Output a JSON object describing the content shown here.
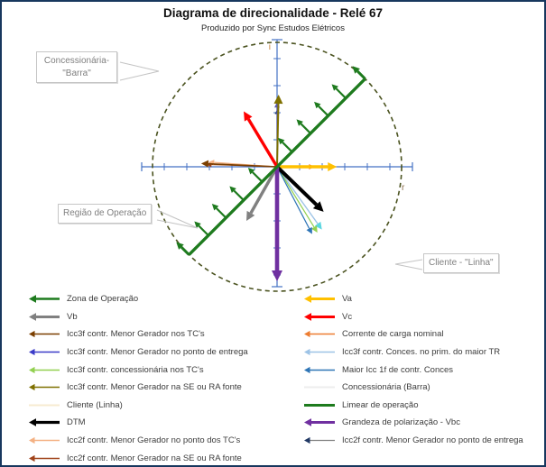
{
  "title": "Diagrama de direcionalidade - Relé 67",
  "subtitle": "Produzido por Sync Estudos Elétricos",
  "callouts": {
    "concessionaria": {
      "text": "Concessionária- \"Barra\""
    },
    "regiao": {
      "text": "Região de Operação"
    },
    "cliente": {
      "text": "Cliente - \"Linha\""
    }
  },
  "colors": {
    "axis": "#4472C4",
    "circle": "#4B5320",
    "operation_line": "#1E7B1E",
    "callout_tail": "#C4C4C4",
    "frame_border": "#17375E",
    "axis_label_i": "#C8823C",
    "axis_label_r": "#8A6D4A"
  },
  "chart_data": {
    "type": "scatter",
    "title": "Diagrama de direcionalidade - Relé 67",
    "subtitle": "Produzido por Sync Estudos Elétricos",
    "description": "Phasor / directionality diagram for relay 67: vectors drawn from origin inside a dashed unit circle; green 45° line bounds the operation zone (hatched toward upper-left).",
    "axes": {
      "horizontal_label": "r",
      "vertical_label": "i",
      "numeric_labels_shown": false,
      "grid": false,
      "unit_circle_radius": 1.0,
      "circle_style": "dashed"
    },
    "legend_position": "bottom",
    "operation_line": {
      "label": "Zona de Operação / Limear de operação",
      "angle_deg": 45,
      "half_length": 1.0,
      "zone_side": "upper-left",
      "color": "#1E7B1E",
      "width": 3.4,
      "hatch_angle_deg": 135,
      "hatch_positions": [
        -0.78,
        -0.58,
        -0.38,
        -0.17,
        0.17,
        0.38,
        0.58,
        0.78
      ],
      "end_caps": true
    },
    "vectors": [
      {
        "name": "Corrente de carga nominal",
        "angle_deg": 0,
        "magnitude": 0.3,
        "color": "#ED7D31",
        "width": 1.2,
        "head": 6
      },
      {
        "name": "Icc2f contr. Menor Gerador no ponto de entrega",
        "angle_deg": 90,
        "magnitude": 0.46,
        "color": "#203864",
        "width": 1,
        "head": 5
      },
      {
        "name": "Icc3f contr. Menor Gerador no ponto de entrega",
        "angle_deg": 90,
        "magnitude": 0.52,
        "color": "#5A5AB0",
        "width": 1.2,
        "head": 6
      },
      {
        "name": "Icc2f contr. Menor Gerador na SE ou RA fonte",
        "angle_deg": 178,
        "magnitude": 0.57,
        "color": "#A0431A",
        "width": 1.2,
        "head": 6
      },
      {
        "name": "Icc2f contr. Menor Gerador no ponto dos TC's",
        "angle_deg": 176,
        "magnitude": 0.55,
        "color": "#F4B183",
        "width": 1.2,
        "head": 6
      },
      {
        "name": "Icc3f contr. Menor Gerador nos TC's",
        "angle_deg": 177.5,
        "magnitude": 0.61,
        "color": "#7B3F00",
        "width": 1.6,
        "head": 8
      },
      {
        "name": "Icc3f contr. Menor Gerador na SE ou RA fonte",
        "angle_deg": 88.8,
        "magnitude": 0.58,
        "color": "#7F7000",
        "width": 2,
        "head": 10
      },
      {
        "name": "Icc3f contr. Conces. no prim. do maior TR",
        "angle_deg": 305.5,
        "magnitude": 0.62,
        "color": "#9DC3E6",
        "width": 1.4,
        "head": 8,
        "head_color": "#5BD6E0"
      },
      {
        "name": "Icc3f contr. concessionária nos TC's",
        "angle_deg": 301.5,
        "magnitude": 0.62,
        "color": "#92D050",
        "width": 1.2,
        "head": 7
      },
      {
        "name": "Maior Icc 1f de contr. Conces",
        "angle_deg": 297.5,
        "magnitude": 0.61,
        "color": "#2E75B6",
        "width": 1.2,
        "head": 7
      },
      {
        "name": "Vb",
        "angle_deg": 240.5,
        "magnitude": 0.5,
        "color": "#808080",
        "width": 3.4,
        "head": 10
      },
      {
        "name": "Vc",
        "angle_deg": 121,
        "magnitude": 0.52,
        "color": "#FF0000",
        "width": 3.4,
        "head": 10
      },
      {
        "name": "Va",
        "angle_deg": 0,
        "magnitude": 0.48,
        "color": "#FFC000",
        "width": 3.4,
        "head": 10
      },
      {
        "name": "DTM",
        "angle_deg": 316,
        "magnitude": 0.52,
        "color": "#000000",
        "width": 4,
        "head": 11
      },
      {
        "name": "Grandeza de polarização - Vbc",
        "angle_deg": 270,
        "magnitude": 0.92,
        "color": "#7030A0",
        "width": 4.6,
        "head": 12
      }
    ]
  },
  "legend": {
    "left": [
      {
        "label": "Zona de Operação",
        "color": "#1E7B1E",
        "weight": 2.6,
        "arrow": true
      },
      {
        "label": "Vb",
        "color": "#808080",
        "weight": 3,
        "arrow": true
      },
      {
        "label": "Icc3f contr. Menor Gerador nos TC's",
        "color": "#7B3F00",
        "weight": 1.6,
        "arrow": true
      },
      {
        "label": "Icc3f contr. Menor Gerador no ponto de entrega",
        "color": "#3B3BC8",
        "weight": 1.6,
        "arrow": true
      },
      {
        "label": "Icc3f contr. concessionária nos TC's",
        "color": "#92D050",
        "weight": 1.6,
        "arrow": true
      },
      {
        "label": "Icc3f contr. Menor Gerador na SE ou RA fonte",
        "color": "#7F7000",
        "weight": 1.6,
        "arrow": true
      },
      {
        "label": "Cliente (Linha)",
        "color": "#F7EBD0",
        "weight": 2,
        "arrow": false
      },
      {
        "label": "DTM",
        "color": "#000000",
        "weight": 3.2,
        "arrow": true
      },
      {
        "label": "Icc2f contr. Menor Gerador no ponto dos TC's",
        "color": "#F4B183",
        "weight": 1.6,
        "arrow": true
      },
      {
        "label": "Icc2f contr. Menor Gerador na SE ou RA fonte",
        "color": "#A0431A",
        "weight": 1.6,
        "arrow": true
      }
    ],
    "right": [
      {
        "label": "Va",
        "color": "#FFC000",
        "weight": 3,
        "arrow": true
      },
      {
        "label": "Vc",
        "color": "#FF0000",
        "weight": 3,
        "arrow": true
      },
      {
        "label": "Corrente de carga nominal",
        "color": "#ED7D31",
        "weight": 1.6,
        "arrow": true
      },
      {
        "label": "Icc3f contr. Conces. no prim. do maior TR",
        "color": "#9DC3E6",
        "weight": 1.6,
        "arrow": true
      },
      {
        "label": "Maior Icc 1f de contr. Conces",
        "color": "#2E75B6",
        "weight": 1.6,
        "arrow": true
      },
      {
        "label": "Concessionária (Barra)",
        "color": "#EDEDED",
        "weight": 2,
        "arrow": false
      },
      {
        "label": "Limear de operação",
        "color": "#1E7B1E",
        "weight": 3,
        "arrow": false
      },
      {
        "label": "Grandeza de polarização - Vbc",
        "color": "#7030A0",
        "weight": 3,
        "arrow": true
      },
      {
        "label": "Icc2f contr. Menor Gerador no ponto de entrega",
        "color": "#808080",
        "weight": 1.2,
        "arrow": true,
        "head_color": "#203864"
      }
    ]
  }
}
